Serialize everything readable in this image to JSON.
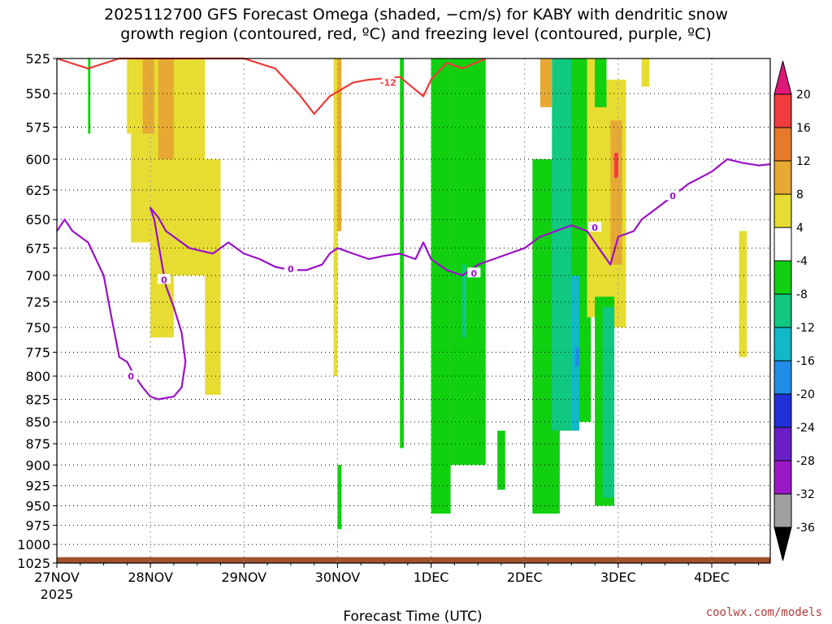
{
  "title": {
    "line1": "2025112700 GFS Forecast Omega (shaded, −cm/s) for KABY with dendritic snow",
    "line2": "growth region (contoured, red, ºC) and freezing level (contoured, purple, ºC)"
  },
  "credit": "coolwx.com/models",
  "chart_data": {
    "type": "heatmap",
    "xlabel": "Forecast Time (UTC)",
    "x_ticks": [
      {
        "t": 0,
        "label": "27NOV",
        "sub": "2025"
      },
      {
        "t": 24,
        "label": "28NOV"
      },
      {
        "t": 48,
        "label": "29NOV"
      },
      {
        "t": 72,
        "label": "30NOV"
      },
      {
        "t": 96,
        "label": "1DEC"
      },
      {
        "t": 120,
        "label": "2DEC"
      },
      {
        "t": 144,
        "label": "3DEC"
      },
      {
        "t": 168,
        "label": "4DEC"
      }
    ],
    "xlim": [
      0,
      183
    ],
    "ylabel": "",
    "y_ticks": [
      525,
      550,
      575,
      600,
      625,
      650,
      675,
      700,
      725,
      750,
      775,
      800,
      825,
      850,
      875,
      900,
      925,
      950,
      975,
      1000,
      1025
    ],
    "ylim": [
      525,
      1025
    ],
    "y_scale": "log-pressure",
    "grid": true,
    "colorbar": {
      "levels": [
        -36,
        -32,
        -28,
        -24,
        -20,
        -16,
        -12,
        -8,
        -4,
        4,
        8,
        12,
        16,
        20
      ],
      "colors": [
        "#000000",
        "#a0a0a0",
        "#9a18c8",
        "#6a1ec8",
        "#2030d8",
        "#1e8ee8",
        "#10b8c8",
        "#10c880",
        "#10d010",
        "#ffffff",
        "#e6dc32",
        "#e6aa32",
        "#e67a28",
        "#f03c3c",
        "#e01878"
      ]
    },
    "shaded_regions": [
      {
        "t0": 8,
        "t1": 8.6,
        "p0": 525,
        "p1": 580,
        "color": "#10d010"
      },
      {
        "t0": 18,
        "t1": 19,
        "p0": 525,
        "p1": 580,
        "color": "#e6dc32"
      },
      {
        "t0": 19,
        "t1": 24,
        "p0": 525,
        "p1": 670,
        "color": "#e6dc32"
      },
      {
        "t0": 24,
        "t1": 30,
        "p0": 525,
        "p1": 760,
        "color": "#e6dc32"
      },
      {
        "t0": 30,
        "t1": 38,
        "p0": 525,
        "p1": 700,
        "color": "#e6dc32"
      },
      {
        "t0": 38,
        "t1": 42,
        "p0": 600,
        "p1": 820,
        "color": "#e6dc32"
      },
      {
        "t0": 22,
        "t1": 25,
        "p0": 525,
        "p1": 580,
        "color": "#e6aa32"
      },
      {
        "t0": 26,
        "t1": 30,
        "p0": 525,
        "p1": 600,
        "color": "#e6aa32"
      },
      {
        "t0": 71,
        "t1": 72,
        "p0": 525,
        "p1": 800,
        "color": "#e6dc32"
      },
      {
        "t0": 72,
        "t1": 73,
        "p0": 525,
        "p1": 660,
        "color": "#e6aa32"
      },
      {
        "t0": 88,
        "t1": 89,
        "p0": 525,
        "p1": 880,
        "color": "#10d010"
      },
      {
        "t0": 96,
        "t1": 101,
        "p0": 525,
        "p1": 960,
        "color": "#10d010"
      },
      {
        "t0": 101,
        "t1": 110,
        "p0": 525,
        "p1": 900,
        "color": "#10d010"
      },
      {
        "t0": 104,
        "t1": 105,
        "p0": 690,
        "p1": 760,
        "color": "#10c880"
      },
      {
        "t0": 122,
        "t1": 129,
        "p0": 600,
        "p1": 960,
        "color": "#10d010"
      },
      {
        "t0": 130,
        "t1": 137,
        "p0": 525,
        "p1": 850,
        "color": "#10d010"
      },
      {
        "t0": 127,
        "t1": 132,
        "p0": 525,
        "p1": 860,
        "color": "#10c880"
      },
      {
        "t0": 132,
        "t1": 134,
        "p0": 700,
        "p1": 860,
        "color": "#10b8c8"
      },
      {
        "t0": 133,
        "t1": 134,
        "p0": 770,
        "p1": 790,
        "color": "#1e8ee8"
      },
      {
        "t0": 124,
        "t1": 127,
        "p0": 525,
        "p1": 560,
        "color": "#e6aa32"
      },
      {
        "t0": 136,
        "t1": 141,
        "p0": 525,
        "p1": 740,
        "color": "#e6dc32"
      },
      {
        "t0": 141,
        "t1": 146,
        "p0": 540,
        "p1": 750,
        "color": "#e6dc32"
      },
      {
        "t0": 142,
        "t1": 145,
        "p0": 570,
        "p1": 690,
        "color": "#e6aa32"
      },
      {
        "t0": 143,
        "t1": 144,
        "p0": 595,
        "p1": 615,
        "color": "#f03c3c"
      },
      {
        "t0": 138,
        "t1": 143,
        "p0": 720,
        "p1": 950,
        "color": "#10d010"
      },
      {
        "t0": 140,
        "t1": 143,
        "p0": 730,
        "p1": 940,
        "color": "#10c880"
      },
      {
        "t0": 138,
        "t1": 141,
        "p0": 525,
        "p1": 560,
        "color": "#10d010"
      },
      {
        "t0": 150,
        "t1": 152,
        "p0": 525,
        "p1": 545,
        "color": "#e6dc32"
      },
      {
        "t0": 175,
        "t1": 177,
        "p0": 660,
        "p1": 780,
        "color": "#e6dc32"
      },
      {
        "t0": 113,
        "t1": 115,
        "p0": 860,
        "p1": 930,
        "color": "#10d010"
      },
      {
        "t0": 72,
        "t1": 73,
        "p0": 900,
        "p1": 980,
        "color": "#10d010"
      }
    ],
    "series": [
      {
        "name": "-12",
        "color": "#ee3a3a",
        "points": [
          [
            0,
            525
          ],
          [
            8,
            532
          ],
          [
            16,
            525
          ],
          [
            20,
            525
          ],
          [
            48,
            525
          ],
          [
            56,
            532
          ],
          [
            62,
            550
          ],
          [
            66,
            565
          ],
          [
            70,
            552
          ],
          [
            76,
            542
          ],
          [
            80,
            540
          ],
          [
            88,
            538
          ],
          [
            94,
            552
          ],
          [
            96,
            540
          ],
          [
            100,
            528
          ],
          [
            104,
            532
          ],
          [
            110,
            525
          ]
        ]
      },
      {
        "name": "0",
        "color": "#9a10c8",
        "points": [
          [
            0,
            660
          ],
          [
            2,
            650
          ],
          [
            4,
            660
          ],
          [
            8,
            670
          ],
          [
            12,
            700
          ],
          [
            14,
            740
          ],
          [
            16,
            780
          ],
          [
            18,
            785
          ],
          [
            20,
            800
          ],
          [
            22,
            812
          ],
          [
            24,
            822
          ],
          [
            26,
            825
          ],
          [
            30,
            822
          ],
          [
            32,
            812
          ],
          [
            33,
            785
          ],
          [
            32,
            755
          ],
          [
            30,
            730
          ],
          [
            28,
            710
          ],
          [
            27,
            690
          ],
          [
            26,
            670
          ],
          [
            25,
            650
          ],
          [
            24,
            640
          ],
          [
            26,
            648
          ],
          [
            28,
            660
          ],
          [
            34,
            675
          ],
          [
            40,
            680
          ],
          [
            44,
            670
          ],
          [
            48,
            680
          ],
          [
            52,
            685
          ],
          [
            56,
            692
          ],
          [
            60,
            695
          ],
          [
            64,
            695
          ],
          [
            68,
            690
          ],
          [
            70,
            680
          ],
          [
            72,
            675
          ],
          [
            76,
            680
          ],
          [
            80,
            685
          ],
          [
            84,
            682
          ],
          [
            88,
            680
          ],
          [
            92,
            685
          ],
          [
            94,
            670
          ],
          [
            96,
            685
          ],
          [
            98,
            690
          ],
          [
            100,
            695
          ],
          [
            104,
            700
          ],
          [
            108,
            690
          ],
          [
            112,
            685
          ],
          [
            116,
            680
          ],
          [
            120,
            675
          ],
          [
            124,
            665
          ],
          [
            128,
            660
          ],
          [
            132,
            655
          ],
          [
            136,
            660
          ],
          [
            140,
            680
          ],
          [
            142,
            690
          ],
          [
            144,
            665
          ],
          [
            148,
            660
          ],
          [
            150,
            650
          ],
          [
            154,
            640
          ],
          [
            158,
            630
          ],
          [
            162,
            620
          ],
          [
            168,
            610
          ],
          [
            172,
            600
          ],
          [
            176,
            603
          ],
          [
            180,
            605
          ],
          [
            183,
            604
          ]
        ]
      }
    ],
    "surface_terrain": {
      "color": "#a0522d",
      "p_top": 1017
    }
  }
}
